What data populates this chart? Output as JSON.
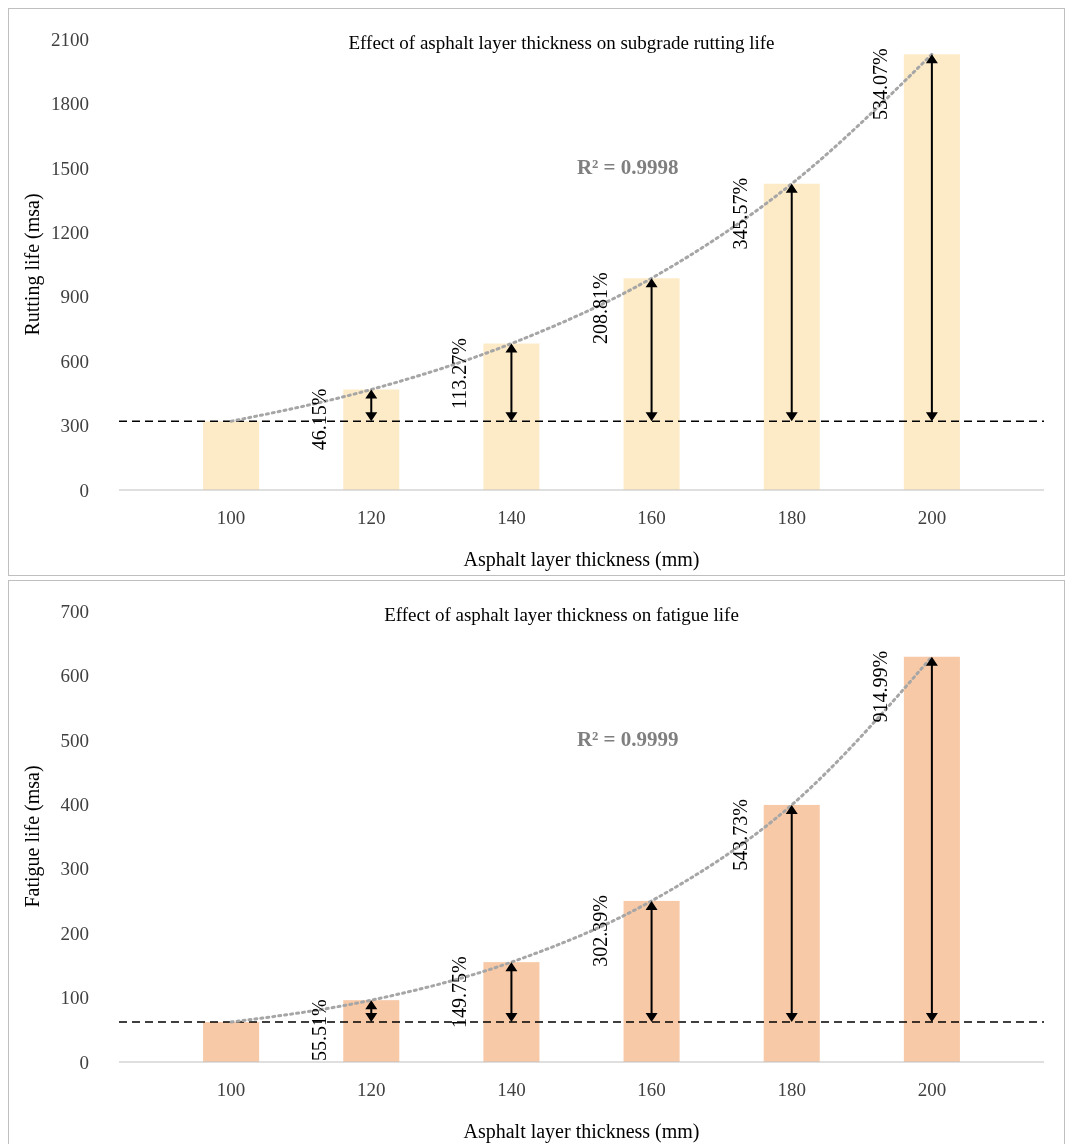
{
  "chart_data": [
    {
      "type": "bar",
      "title": "Effect of asphalt layer thickness on subgrade rutting life",
      "xlabel": "Asphalt layer thickness (mm)",
      "ylabel": "Rutting life (msa)",
      "categories": [
        "100",
        "120",
        "140",
        "160",
        "180",
        "200"
      ],
      "series": [
        {
          "color": "#fdebc8",
          "values": [
            320,
            468,
            682,
            986,
            1426,
            2029
          ]
        },
        {
          "type": "line",
          "color": "#a6a6a6",
          "line_style": "dotted",
          "marker": "none",
          "values": [
            320,
            468,
            682,
            986,
            1426,
            2029
          ]
        }
      ],
      "ylim": [
        0,
        2100
      ],
      "yticks": [
        0,
        300,
        600,
        900,
        1200,
        1500,
        1800,
        2100
      ],
      "grid": false,
      "ref_lines": [
        {
          "axis": "y",
          "value": 320,
          "color": "#000000",
          "line_style": "dashed"
        }
      ],
      "annotations": [
        {
          "text": "46.15%",
          "x": "120",
          "y": 468
        },
        {
          "text": "113.27%",
          "x": "140",
          "y": 682
        },
        {
          "text": "208.81%",
          "x": "160",
          "y": 986
        },
        {
          "text": "345.57%",
          "x": "180",
          "y": 1426
        },
        {
          "text": "534.07%",
          "x": "200",
          "y": 2029
        },
        "R² = 0.9998"
      ]
    },
    {
      "type": "bar",
      "title": "Effect of asphalt layer thickness on fatigue life",
      "xlabel": "Asphalt layer thickness (mm)",
      "ylabel": "Fatigue life (msa)",
      "categories": [
        "100",
        "120",
        "140",
        "160",
        "180",
        "200"
      ],
      "series": [
        {
          "color": "#f7c9a7",
          "values": [
            62,
            96,
            155,
            250,
            399,
            629
          ]
        },
        {
          "type": "line",
          "color": "#a6a6a6",
          "line_style": "dotted",
          "marker": "none",
          "values": [
            62,
            96,
            155,
            250,
            399,
            629
          ]
        }
      ],
      "ylim": [
        0,
        700
      ],
      "yticks": [
        0,
        100,
        200,
        300,
        400,
        500,
        600,
        700
      ],
      "grid": false,
      "ref_lines": [
        {
          "axis": "y",
          "value": 62,
          "color": "#000000",
          "line_style": "dashed"
        }
      ],
      "annotations": [
        {
          "text": "55.51%",
          "x": "120",
          "y": 96
        },
        {
          "text": "149.75%",
          "x": "140",
          "y": 155
        },
        {
          "text": "302.39%",
          "x": "160",
          "y": 250
        },
        {
          "text": "543.73%",
          "x": "180",
          "y": 399
        },
        {
          "text": "914.99%",
          "x": "200",
          "y": 629
        },
        "R² = 0.9999"
      ]
    }
  ]
}
